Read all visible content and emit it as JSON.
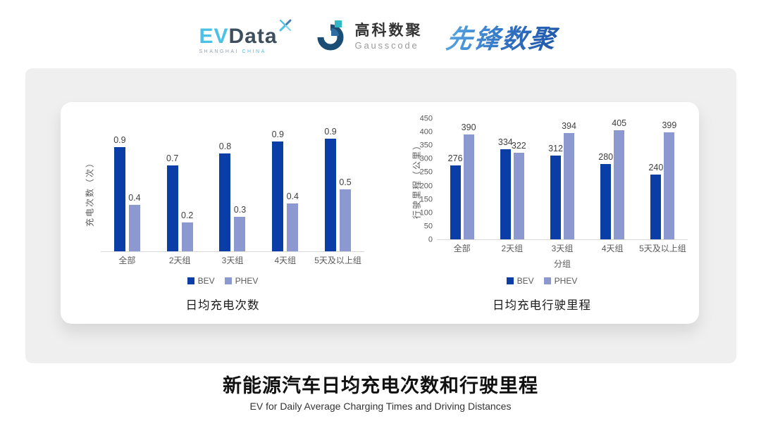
{
  "header": {
    "evdata": {
      "ev": "EV",
      "data": "Data",
      "sub_left": "SHANGHAI",
      "sub_right": "CHINA"
    },
    "gausscode": {
      "cn": "高科数聚",
      "en": "Gausscode"
    },
    "pioneer": {
      "text": "先锋数聚"
    }
  },
  "footer": {
    "title": "新能源汽车日均充电次数和行驶里程",
    "subtitle": "EV for Daily Average Charging Times and Driving Distances"
  },
  "colors": {
    "bev": "#0B3DA7",
    "phev": "#8C98D0",
    "axis_line": "#D9D9D9",
    "data_label": "#404040",
    "axis_text": "#595959",
    "gray_card_bg": "#EFEFEF",
    "evdata_cyan": "#4BC1E6",
    "evdata_dark": "#3E4E5C",
    "gausscode_navy": "#1C4E75",
    "gausscode_teal": "#2FB7C8",
    "pioneer_blue": "#2F6FC0"
  },
  "chart_data": [
    {
      "type": "bar",
      "title": "日均充电次数",
      "ylabel": "充电次数（次）",
      "xlabel": "",
      "categories": [
        "全部",
        "2天组",
        "3天组",
        "4天组",
        "5天及以上组"
      ],
      "series": [
        {
          "name": "BEV",
          "values": [
            0.9,
            0.7,
            0.8,
            0.9,
            0.9
          ],
          "values_precise": [
            0.87,
            0.72,
            0.82,
            0.92,
            0.94
          ]
        },
        {
          "name": "PHEV",
          "values": [
            0.4,
            0.2,
            0.3,
            0.4,
            0.5
          ],
          "values_precise": [
            0.39,
            0.24,
            0.29,
            0.4,
            0.52
          ]
        }
      ],
      "ylim": [
        0,
        1.0
      ],
      "yticks": null,
      "value_decimals": 1,
      "grid": false,
      "legend": [
        "BEV",
        "PHEV"
      ],
      "legend_position": "bottom"
    },
    {
      "type": "bar",
      "title": "日均充电行驶里程",
      "ylabel": "行驶里程（公里）",
      "xlabel": "分组",
      "categories": [
        "全部",
        "2天组",
        "3天组",
        "4天组",
        "5天及以上组"
      ],
      "series": [
        {
          "name": "BEV",
          "values": [
            276,
            334,
            312,
            280,
            240
          ]
        },
        {
          "name": "PHEV",
          "values": [
            390,
            322,
            394,
            405,
            399
          ]
        }
      ],
      "ylim": [
        0,
        450
      ],
      "yticks": [
        0,
        50,
        100,
        150,
        200,
        250,
        300,
        350,
        400,
        450
      ],
      "value_decimals": 0,
      "grid": false,
      "legend": [
        "BEV",
        "PHEV"
      ],
      "legend_position": "bottom"
    }
  ]
}
